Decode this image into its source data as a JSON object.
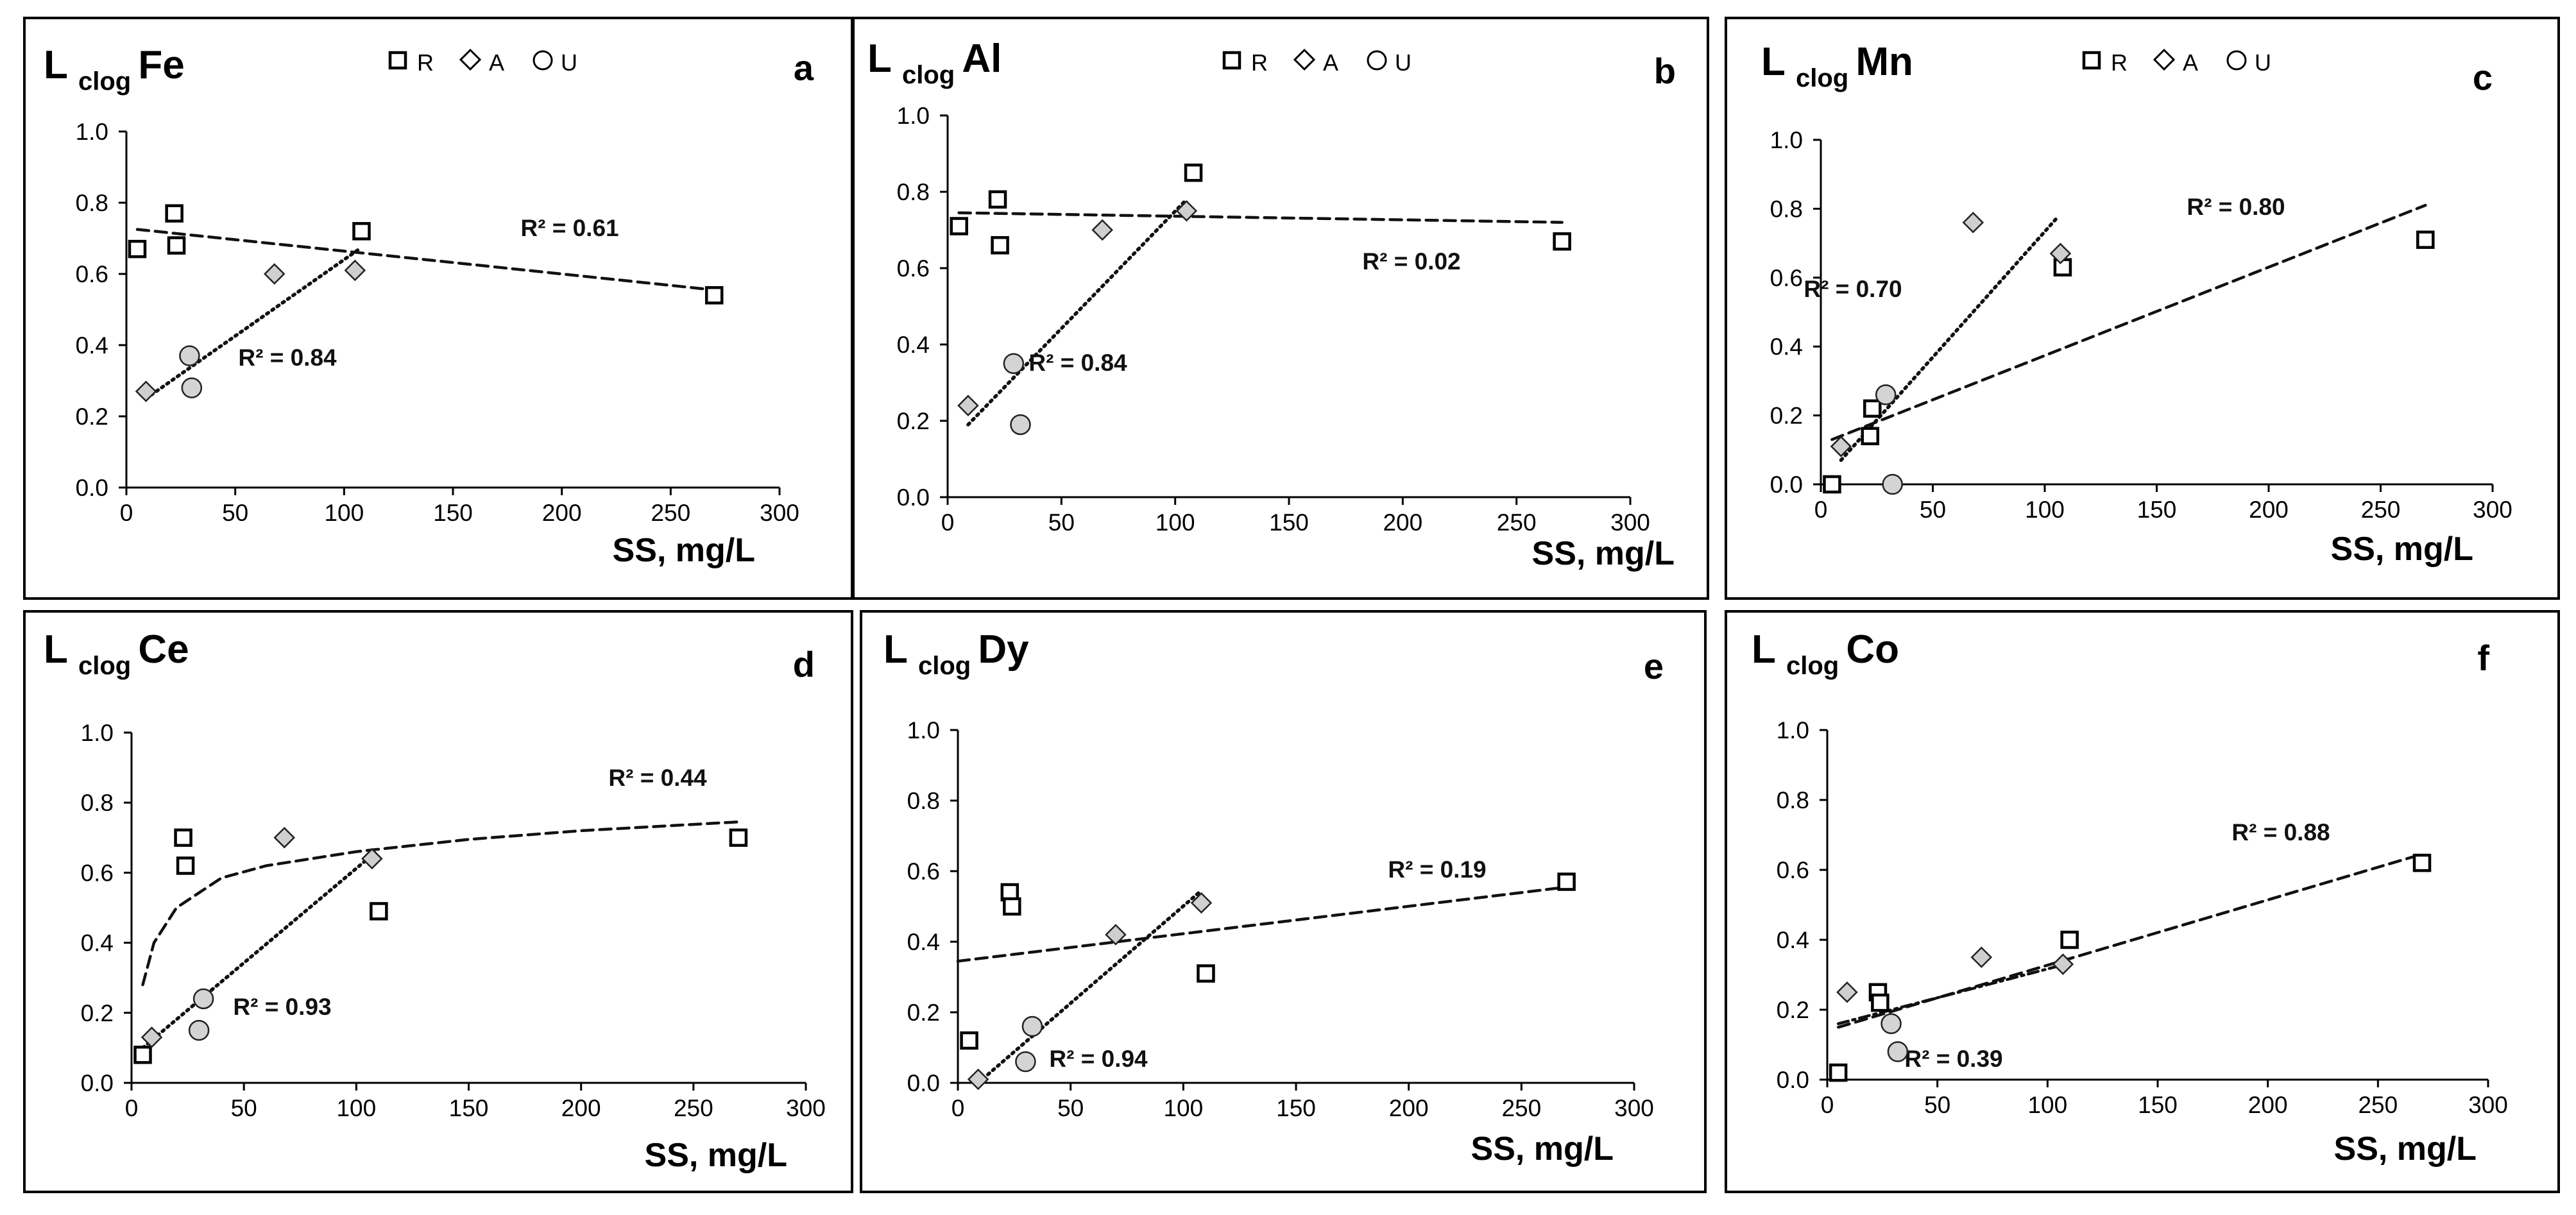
{
  "chart_data": [
    {
      "panel_id": "a",
      "type": "scatter",
      "title": {
        "prefix": "L",
        "sub": "clog",
        "element": "Fe"
      },
      "legend": [
        "R",
        "A",
        "U"
      ],
      "xlabel": "SS, mg/L",
      "ylabel": "",
      "xlim": [
        0,
        300
      ],
      "ylim": [
        0,
        1.0
      ],
      "xticks": [
        "0",
        "50",
        "100",
        "150",
        "200",
        "250",
        "300"
      ],
      "yticks": [
        "0.0",
        "0.2",
        "0.4",
        "0.6",
        "0.8",
        "1.0"
      ],
      "series": [
        {
          "name": "R",
          "marker": "square",
          "points": [
            [
              5,
              0.67
            ],
            [
              22,
              0.77
            ],
            [
              23,
              0.68
            ],
            [
              108,
              0.72
            ],
            [
              270,
              0.54
            ]
          ]
        },
        {
          "name": "A",
          "marker": "diamond",
          "points": [
            [
              9,
              0.27
            ],
            [
              68,
              0.6
            ],
            [
              105,
              0.61
            ]
          ]
        },
        {
          "name": "U",
          "marker": "circle",
          "points": [
            [
              29,
              0.37
            ],
            [
              30,
              0.28
            ]
          ]
        }
      ],
      "fits": [
        {
          "series": "R",
          "kind": "linear",
          "style": "dashed",
          "x": [
            5,
            270
          ],
          "y": [
            0.725,
            0.555
          ],
          "r2": "R² = 0.61"
        },
        {
          "series": "A+U",
          "kind": "linear",
          "style": "dotted",
          "x": [
            9,
            107
          ],
          "y": [
            0.25,
            0.67
          ],
          "r2": "R² = 0.84"
        }
      ]
    },
    {
      "panel_id": "b",
      "type": "scatter",
      "title": {
        "prefix": "L",
        "sub": "clog",
        "element": "Al"
      },
      "legend": [
        "R",
        "A",
        "U"
      ],
      "xlabel": "SS, mg/L",
      "ylabel": "",
      "xlim": [
        0,
        300
      ],
      "ylim": [
        0,
        1.0
      ],
      "xticks": [
        "0",
        "50",
        "100",
        "150",
        "200",
        "250",
        "300"
      ],
      "yticks": [
        "0.0",
        "0.2",
        "0.4",
        "0.6",
        "0.8",
        "1.0"
      ],
      "series": [
        {
          "name": "R",
          "marker": "square",
          "points": [
            [
              5,
              0.71
            ],
            [
              22,
              0.78
            ],
            [
              23,
              0.66
            ],
            [
              108,
              0.85
            ],
            [
              270,
              0.67
            ]
          ]
        },
        {
          "name": "A",
          "marker": "diamond",
          "points": [
            [
              9,
              0.24
            ],
            [
              68,
              0.7
            ],
            [
              105,
              0.75
            ]
          ]
        },
        {
          "name": "U",
          "marker": "circle",
          "points": [
            [
              29,
              0.35
            ],
            [
              32,
              0.19
            ]
          ]
        }
      ],
      "fits": [
        {
          "series": "R",
          "kind": "linear",
          "style": "dashed",
          "x": [
            5,
            270
          ],
          "y": [
            0.745,
            0.72
          ],
          "r2": "R² = 0.02"
        },
        {
          "series": "A+U",
          "kind": "linear",
          "style": "dotted",
          "x": [
            9,
            105
          ],
          "y": [
            0.19,
            0.78
          ],
          "r2": "R² = 0.84"
        }
      ]
    },
    {
      "panel_id": "c",
      "type": "scatter",
      "title": {
        "prefix": "L",
        "sub": "clog",
        "element": "Mn"
      },
      "legend": [
        "R",
        "A",
        "U"
      ],
      "xlabel": "SS, mg/L",
      "ylabel": "",
      "xlim": [
        0,
        300
      ],
      "ylim": [
        0,
        1.0
      ],
      "xticks": [
        "0",
        "50",
        "100",
        "150",
        "200",
        "250",
        "300"
      ],
      "yticks": [
        "0.0",
        "0.2",
        "0.4",
        "0.6",
        "0.8",
        "1.0"
      ],
      "series": [
        {
          "name": "R",
          "marker": "square",
          "points": [
            [
              5,
              0.0
            ],
            [
              22,
              0.14
            ],
            [
              23,
              0.22
            ],
            [
              108,
              0.63
            ],
            [
              270,
              0.71
            ]
          ]
        },
        {
          "name": "A",
          "marker": "diamond",
          "points": [
            [
              9,
              0.11
            ],
            [
              68,
              0.76
            ],
            [
              107,
              0.67
            ]
          ]
        },
        {
          "name": "U",
          "marker": "circle",
          "points": [
            [
              29,
              0.26
            ],
            [
              32,
              0.0
            ]
          ]
        }
      ],
      "fits": [
        {
          "series": "R",
          "kind": "linear",
          "style": "dashed",
          "x": [
            5,
            270
          ],
          "y": [
            0.13,
            0.81
          ],
          "r2": "R² = 0.80"
        },
        {
          "series": "A+U",
          "kind": "linear",
          "style": "dotted",
          "x": [
            9,
            105
          ],
          "y": [
            0.07,
            0.77
          ],
          "r2": "R² = 0.70"
        }
      ]
    },
    {
      "panel_id": "d",
      "type": "scatter",
      "title": {
        "prefix": "L",
        "sub": "clog",
        "element": "Ce"
      },
      "legend": [],
      "xlabel": "SS, mg/L",
      "ylabel": "",
      "xlim": [
        0,
        300
      ],
      "ylim": [
        0,
        1.0
      ],
      "xticks": [
        "0",
        "50",
        "100",
        "150",
        "200",
        "250",
        "300"
      ],
      "yticks": [
        "0.0",
        "0.2",
        "0.4",
        "0.6",
        "0.8",
        "1.0"
      ],
      "series": [
        {
          "name": "R",
          "marker": "square",
          "points": [
            [
              5,
              0.08
            ],
            [
              23,
              0.7
            ],
            [
              24,
              0.62
            ],
            [
              110,
              0.49
            ],
            [
              270,
              0.7
            ]
          ]
        },
        {
          "name": "A",
          "marker": "diamond",
          "points": [
            [
              9,
              0.13
            ],
            [
              68,
              0.7
            ],
            [
              107,
              0.64
            ]
          ]
        },
        {
          "name": "U",
          "marker": "circle",
          "points": [
            [
              30,
              0.15
            ],
            [
              32,
              0.24
            ]
          ]
        }
      ],
      "fits": [
        {
          "series": "R",
          "kind": "log",
          "style": "dashed",
          "x": [
            5,
            10,
            20,
            40,
            60,
            100,
            150,
            200,
            270
          ],
          "y": [
            0.28,
            0.4,
            0.5,
            0.585,
            0.62,
            0.66,
            0.695,
            0.72,
            0.745
          ],
          "r2": "R² = 0.44"
        },
        {
          "series": "A+U",
          "kind": "linear",
          "style": "dotted",
          "x": [
            5,
            107
          ],
          "y": [
            0.1,
            0.65
          ],
          "r2": "R² = 0.93"
        }
      ]
    },
    {
      "panel_id": "e",
      "type": "scatter",
      "title": {
        "prefix": "L",
        "sub": "clog",
        "element": "Dy"
      },
      "legend": [],
      "xlabel": "SS, mg/L",
      "ylabel": "",
      "xlim": [
        0,
        300
      ],
      "ylim": [
        0,
        1.0
      ],
      "xticks": [
        "0",
        "50",
        "100",
        "150",
        "200",
        "250",
        "300"
      ],
      "yticks": [
        "0.0",
        "0.2",
        "0.4",
        "0.6",
        "0.8",
        "1.0"
      ],
      "series": [
        {
          "name": "R",
          "marker": "square",
          "points": [
            [
              5,
              0.12
            ],
            [
              23,
              0.54
            ],
            [
              24,
              0.5
            ],
            [
              110,
              0.31
            ],
            [
              270,
              0.57
            ]
          ]
        },
        {
          "name": "A",
          "marker": "diamond",
          "points": [
            [
              9,
              0.01
            ],
            [
              70,
              0.42
            ],
            [
              108,
              0.51
            ]
          ]
        },
        {
          "name": "U",
          "marker": "circle",
          "points": [
            [
              30,
              0.06
            ],
            [
              33,
              0.16
            ]
          ]
        }
      ],
      "fits": [
        {
          "series": "R",
          "kind": "linear",
          "style": "dashed",
          "x": [
            0,
            270
          ],
          "y": [
            0.345,
            0.555
          ],
          "r2": "R² = 0.19"
        },
        {
          "series": "A+U",
          "kind": "linear",
          "style": "dotted",
          "x": [
            9,
            108
          ],
          "y": [
            0.0,
            0.545
          ],
          "r2": "R² = 0.94"
        }
      ]
    },
    {
      "panel_id": "f",
      "type": "scatter",
      "title": {
        "prefix": "L",
        "sub": "clog",
        "element": "Co"
      },
      "legend": [],
      "xlabel": "SS,  mg/L",
      "ylabel": "",
      "xlim": [
        0,
        300
      ],
      "ylim": [
        0,
        1.0
      ],
      "xticks": [
        "0",
        "50",
        "100",
        "150",
        "200",
        "250",
        "300"
      ],
      "yticks": [
        "0.0",
        "0.2",
        "0.4",
        "0.6",
        "0.8",
        "1.0"
      ],
      "series": [
        {
          "name": "R",
          "marker": "square",
          "points": [
            [
              5,
              0.02
            ],
            [
              23,
              0.25
            ],
            [
              24,
              0.22
            ],
            [
              110,
              0.4
            ],
            [
              270,
              0.62
            ]
          ]
        },
        {
          "name": "A",
          "marker": "diamond",
          "points": [
            [
              9,
              0.25
            ],
            [
              70,
              0.35
            ],
            [
              107,
              0.33
            ]
          ]
        },
        {
          "name": "U",
          "marker": "circle",
          "points": [
            [
              29,
              0.16
            ],
            [
              32,
              0.08
            ]
          ]
        }
      ],
      "fits": [
        {
          "series": "R",
          "kind": "linear",
          "style": "dashed",
          "x": [
            5,
            270
          ],
          "y": [
            0.15,
            0.645
          ],
          "r2": "R² = 0.88"
        },
        {
          "series": "A+U",
          "kind": "linear",
          "style": "dashdot",
          "x": [
            5,
            108
          ],
          "y": [
            0.16,
            0.33
          ],
          "r2": "R² = 0.39"
        }
      ]
    }
  ]
}
